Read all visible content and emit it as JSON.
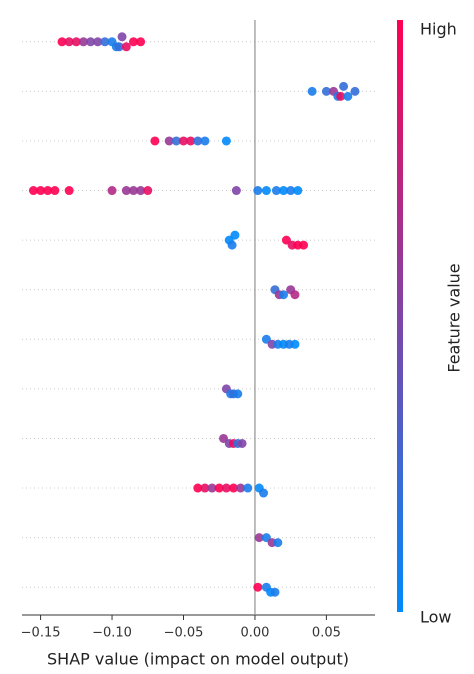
{
  "chart_data": {
    "type": "beeswarm",
    "xlabel": "SHAP value (impact on model output)",
    "colorbar_label": "Feature value",
    "colorbar_high": "High",
    "colorbar_low": "Low",
    "colormap": [
      "#008afb",
      "#ff0052"
    ],
    "xlim": [
      -0.163,
      0.084
    ],
    "xticks": [
      {
        "value": -0.15,
        "label": "−0.15"
      },
      {
        "value": -0.1,
        "label": "−0.10"
      },
      {
        "value": -0.05,
        "label": "−0.05"
      },
      {
        "value": 0,
        "label": "0.00"
      },
      {
        "value": 0.05,
        "label": "0.05"
      }
    ],
    "rows": [
      {
        "values": [
          -0.135,
          -0.13,
          -0.125,
          -0.12,
          -0.115,
          -0.11,
          -0.105,
          -0.1,
          -0.097,
          -0.095,
          -0.093,
          -0.09,
          -0.085,
          -0.08
        ],
        "feature_values": [
          1,
          0.9,
          0.9,
          0.6,
          0.5,
          0.5,
          0.2,
          0.1,
          0.1,
          0.2,
          0.5,
          0.9,
          1,
          1
        ]
      },
      {
        "values": [
          0.04,
          0.05,
          0.055,
          0.058,
          0.06,
          0.062,
          0.065,
          0.07
        ],
        "feature_values": [
          0.1,
          0.2,
          0.6,
          0.1,
          0.9,
          0.2,
          0.1,
          0.2
        ]
      },
      {
        "values": [
          -0.07,
          -0.06,
          -0.055,
          -0.05,
          -0.045,
          -0.04,
          -0.035,
          -0.02
        ],
        "feature_values": [
          1,
          0.6,
          0.2,
          0.9,
          0.9,
          0.2,
          0.1,
          0
        ]
      },
      {
        "values": [
          -0.155,
          -0.15,
          -0.145,
          -0.14,
          -0.13,
          -0.1,
          -0.09,
          -0.085,
          -0.08,
          -0.075,
          -0.013,
          0.002,
          0.008,
          0.015,
          0.02,
          0.025,
          0.03
        ],
        "feature_values": [
          1,
          1,
          1,
          1,
          1,
          0.7,
          0.6,
          0.6,
          0.6,
          0.9,
          0.5,
          0.1,
          0,
          0.1,
          0,
          0.1,
          0
        ]
      },
      {
        "values": [
          -0.018,
          -0.016,
          -0.014,
          0.022,
          0.026,
          0.03,
          0.034
        ],
        "feature_values": [
          0,
          0.1,
          0,
          1,
          0.9,
          1,
          1
        ]
      },
      {
        "values": [
          0.014,
          0.017,
          0.02,
          0.025,
          0.028
        ],
        "feature_values": [
          0.2,
          0.6,
          0.1,
          0.6,
          0.7
        ]
      },
      {
        "values": [
          0.008,
          0.012,
          0.016,
          0.02,
          0.024,
          0.028
        ],
        "feature_values": [
          0.1,
          0.5,
          0.1,
          0,
          0.1,
          0
        ]
      },
      {
        "values": [
          -0.02,
          -0.017,
          -0.015,
          -0.012
        ],
        "feature_values": [
          0.5,
          0.1,
          0.2,
          0.1
        ]
      },
      {
        "values": [
          -0.022,
          -0.018,
          -0.015,
          -0.012,
          -0.009
        ],
        "feature_values": [
          0.6,
          0.5,
          0.9,
          0.2,
          0.5
        ]
      },
      {
        "values": [
          -0.04,
          -0.035,
          -0.03,
          -0.025,
          -0.02,
          -0.015,
          -0.01,
          -0.005,
          0.003,
          0.006
        ],
        "feature_values": [
          1,
          0.9,
          0.6,
          1,
          0.9,
          1,
          0.6,
          0.1,
          0,
          0.1
        ]
      },
      {
        "values": [
          0.003,
          0.008,
          0.012,
          0.016
        ],
        "feature_values": [
          0.6,
          0.1,
          0.6,
          0.1
        ]
      },
      {
        "values": [
          0.002,
          0.008,
          0.011,
          0.014
        ],
        "feature_values": [
          1,
          0.1,
          0,
          0.1
        ]
      }
    ]
  }
}
